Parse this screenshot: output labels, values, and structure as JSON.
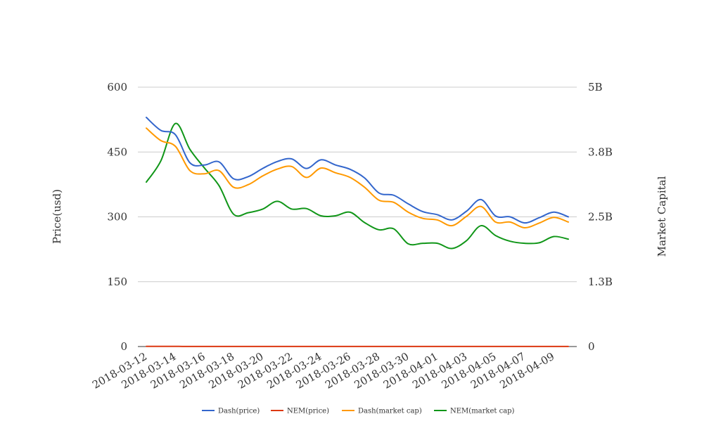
{
  "chart_data": {
    "type": "line",
    "x": [
      "2018-03-12",
      "2018-03-13",
      "2018-03-14",
      "2018-03-15",
      "2018-03-16",
      "2018-03-17",
      "2018-03-18",
      "2018-03-19",
      "2018-03-20",
      "2018-03-21",
      "2018-03-22",
      "2018-03-23",
      "2018-03-24",
      "2018-03-25",
      "2018-03-26",
      "2018-03-27",
      "2018-03-28",
      "2018-03-29",
      "2018-03-30",
      "2018-03-31",
      "2018-04-01",
      "2018-04-02",
      "2018-04-03",
      "2018-04-04",
      "2018-04-05",
      "2018-04-06",
      "2018-04-07",
      "2018-04-08",
      "2018-04-09",
      "2018-04-10"
    ],
    "xtick_labels": [
      "2018-03-12",
      "2018-03-14",
      "2018-03-16",
      "2018-03-18",
      "2018-03-20",
      "2018-03-22",
      "2018-03-24",
      "2018-03-26",
      "2018-03-28",
      "2018-03-30",
      "2018-04-01",
      "2018-04-03",
      "2018-04-05",
      "2018-04-07",
      "2018-04-09"
    ],
    "ylabel": "Price(usd)",
    "y2label": "Market Capital",
    "ylim": [
      0,
      600
    ],
    "y2lim": [
      0,
      5000000000
    ],
    "yticks": [
      "0",
      "150",
      "300",
      "450",
      "600"
    ],
    "y2ticks": [
      "0",
      "1.3B",
      "2.5B",
      "3.8B",
      "5B"
    ],
    "grid": true,
    "legend_position": "bottom",
    "series": [
      {
        "name": "Dash(price)",
        "axis": "left",
        "color": "#3366cc",
        "values": [
          530,
          500,
          490,
          425,
          420,
          427,
          388,
          393,
          412,
          428,
          434,
          412,
          432,
          420,
          410,
          390,
          355,
          350,
          330,
          312,
          305,
          293,
          313,
          340,
          302,
          300,
          286,
          298,
          311,
          300
        ]
      },
      {
        "name": "NEM(price)",
        "axis": "left",
        "color": "#dc3912",
        "values": [
          0.34,
          0.33,
          0.32,
          0.29,
          0.28,
          0.28,
          0.24,
          0.24,
          0.25,
          0.26,
          0.27,
          0.25,
          0.25,
          0.24,
          0.24,
          0.23,
          0.21,
          0.21,
          0.19,
          0.19,
          0.19,
          0.18,
          0.19,
          0.21,
          0.19,
          0.19,
          0.18,
          0.19,
          0.19,
          0.18
        ]
      },
      {
        "name": "Dash(market cap)",
        "axis": "right",
        "color": "#ff9900",
        "values": [
          4210000000,
          3970000000,
          3860000000,
          3390000000,
          3330000000,
          3390000000,
          3070000000,
          3120000000,
          3290000000,
          3420000000,
          3470000000,
          3260000000,
          3440000000,
          3350000000,
          3260000000,
          3070000000,
          2820000000,
          2780000000,
          2590000000,
          2470000000,
          2440000000,
          2330000000,
          2510000000,
          2700000000,
          2400000000,
          2400000000,
          2290000000,
          2380000000,
          2490000000,
          2400000000
        ]
      },
      {
        "name": "NEM(market cap)",
        "axis": "right",
        "color": "#109618",
        "values": [
          3170000000,
          3580000000,
          4300000000,
          3800000000,
          3440000000,
          3100000000,
          2550000000,
          2580000000,
          2650000000,
          2800000000,
          2650000000,
          2660000000,
          2520000000,
          2520000000,
          2590000000,
          2390000000,
          2250000000,
          2270000000,
          1980000000,
          1990000000,
          1990000000,
          1890000000,
          2040000000,
          2330000000,
          2140000000,
          2030000000,
          1990000000,
          2000000000,
          2120000000,
          2070000000
        ]
      }
    ]
  }
}
